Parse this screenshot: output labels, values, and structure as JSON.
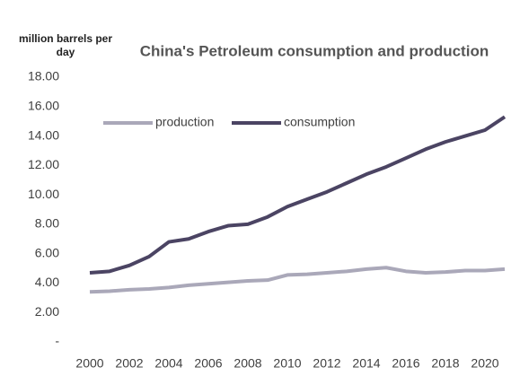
{
  "chart_data": {
    "type": "line",
    "title": "China's Petroleum consumption and production",
    "y_label": "million barrels per day",
    "categories": [
      "2000",
      null,
      "2002",
      null,
      "2004",
      null,
      "2006",
      null,
      "2008",
      null,
      "2010",
      null,
      "2012",
      null,
      "2014",
      null,
      "2016",
      null,
      "2018",
      null,
      "2020",
      null
    ],
    "series": [
      {
        "name": "production",
        "color": "#aaa8b9",
        "values": [
          3.4,
          3.45,
          3.55,
          3.6,
          3.7,
          3.85,
          3.95,
          4.05,
          4.15,
          4.2,
          4.55,
          4.6,
          4.7,
          4.8,
          4.95,
          5.05,
          4.8,
          4.7,
          4.75,
          4.85,
          4.85,
          4.95
        ]
      },
      {
        "name": "consumption",
        "color": "#4b4463",
        "values": [
          4.7,
          4.8,
          5.2,
          5.8,
          6.8,
          7.0,
          7.5,
          7.9,
          8.0,
          8.5,
          9.2,
          9.7,
          10.2,
          10.8,
          11.4,
          11.9,
          12.5,
          13.1,
          13.6,
          14.0,
          14.4,
          15.3
        ]
      }
    ],
    "ylim": [
      0,
      18
    ],
    "yticks": [
      {
        "value": 0,
        "label": "-"
      },
      {
        "value": 2,
        "label": "2.00"
      },
      {
        "value": 4,
        "label": "4.00"
      },
      {
        "value": 6,
        "label": "6.00"
      },
      {
        "value": 8,
        "label": "8.00"
      },
      {
        "value": 10,
        "label": "10.00"
      },
      {
        "value": 12,
        "label": "12.00"
      },
      {
        "value": 14,
        "label": "14.00"
      },
      {
        "value": 16,
        "label": "16.00"
      },
      {
        "value": 18,
        "label": "18.00"
      }
    ],
    "grid": false,
    "legend": "top-left"
  }
}
